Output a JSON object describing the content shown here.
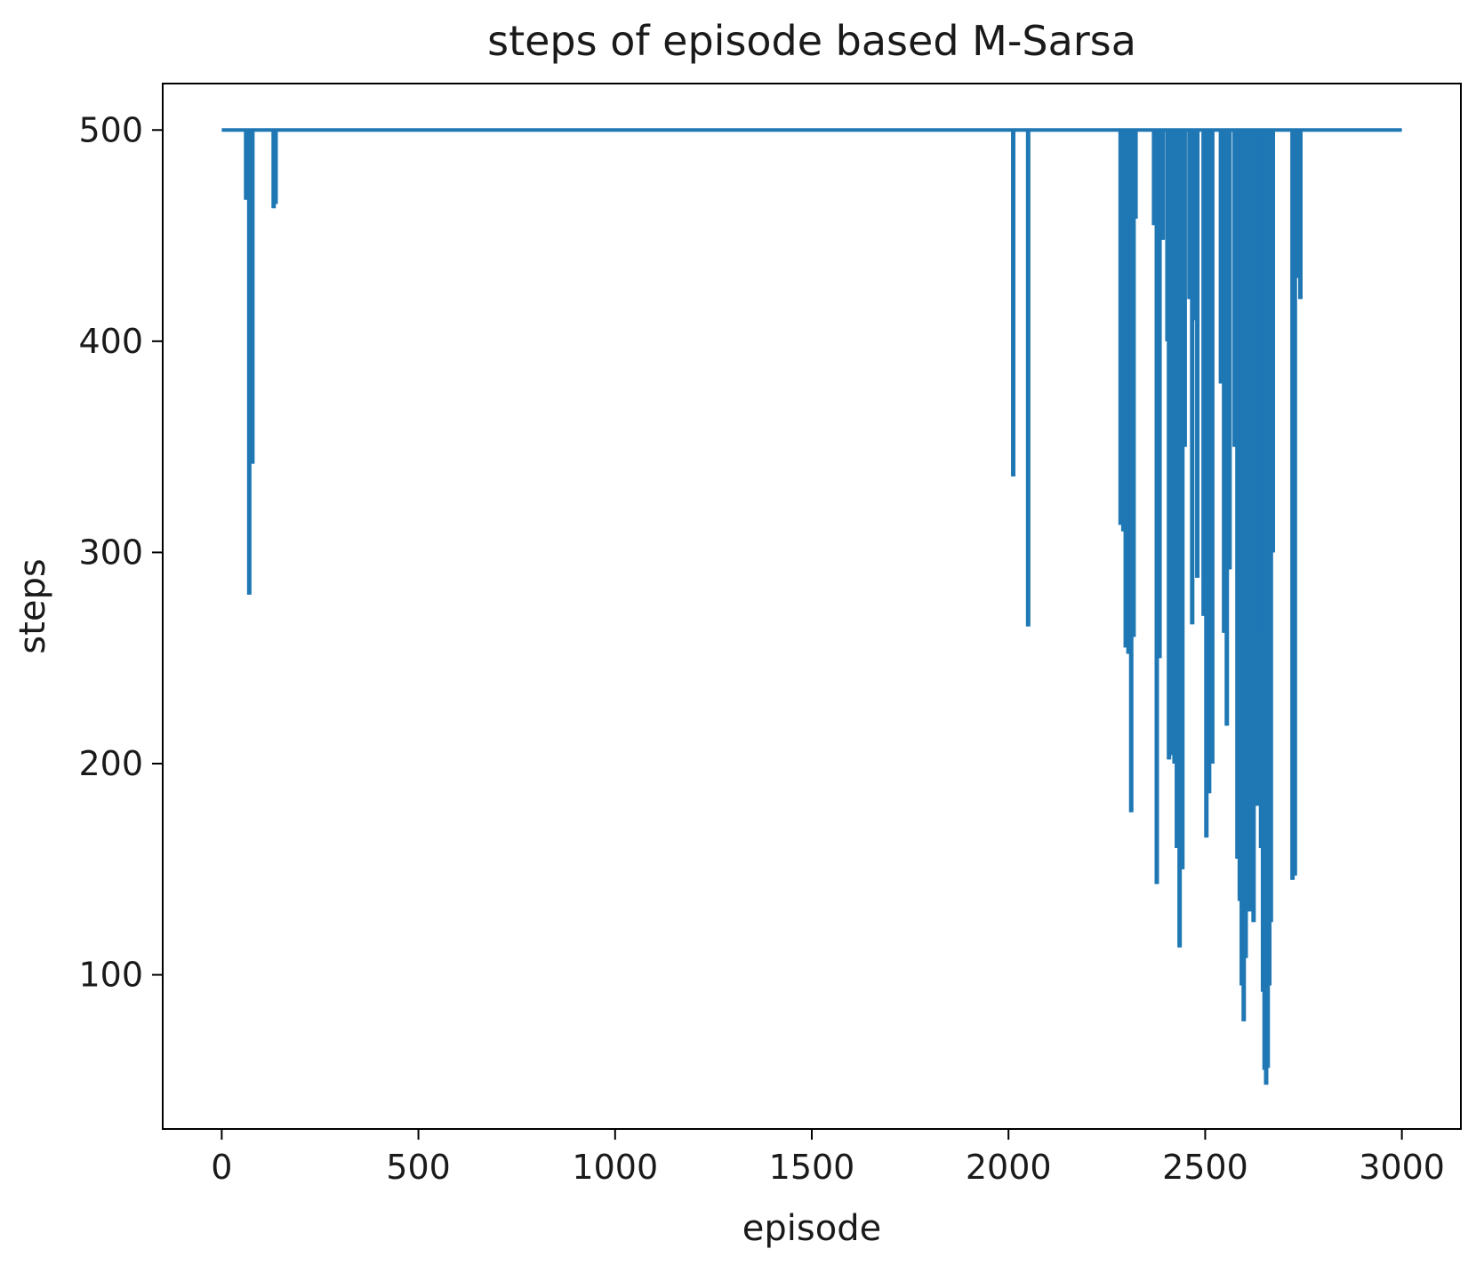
{
  "chart_data": {
    "type": "line",
    "title": "steps of episode based M-Sarsa",
    "xlabel": "episode",
    "ylabel": "steps",
    "xlim": [
      -150,
      3150
    ],
    "ylim": [
      27,
      522
    ],
    "xticks": [
      0,
      500,
      1000,
      1500,
      2000,
      2500,
      3000
    ],
    "xtick_labels": [
      "0",
      "500",
      "1000",
      "1500",
      "2000",
      "2500",
      "3000"
    ],
    "yticks": [
      100,
      200,
      300,
      400,
      500
    ],
    "ytick_labels": [
      "100",
      "200",
      "300",
      "400",
      "500"
    ],
    "grid": false,
    "legend": "none",
    "series": [
      {
        "color": "#1f77b4",
        "baseline": 500,
        "x_range": [
          0,
          3000
        ],
        "dips": [
          {
            "x": 62,
            "y": 467
          },
          {
            "x": 70,
            "y": 280
          },
          {
            "x": 78,
            "y": 342
          },
          {
            "x": 132,
            "y": 463
          },
          {
            "x": 137,
            "y": 465
          },
          {
            "x": 2012,
            "y": 336
          },
          {
            "x": 2050,
            "y": 265
          },
          {
            "x": 2285,
            "y": 313
          },
          {
            "x": 2292,
            "y": 310
          },
          {
            "x": 2298,
            "y": 255
          },
          {
            "x": 2305,
            "y": 252
          },
          {
            "x": 2312,
            "y": 177
          },
          {
            "x": 2318,
            "y": 260
          },
          {
            "x": 2323,
            "y": 458
          },
          {
            "x": 2370,
            "y": 455
          },
          {
            "x": 2377,
            "y": 143
          },
          {
            "x": 2384,
            "y": 250
          },
          {
            "x": 2392,
            "y": 448
          },
          {
            "x": 2404,
            "y": 400
          },
          {
            "x": 2408,
            "y": 202
          },
          {
            "x": 2415,
            "y": 204
          },
          {
            "x": 2422,
            "y": 200
          },
          {
            "x": 2428,
            "y": 160
          },
          {
            "x": 2435,
            "y": 113
          },
          {
            "x": 2442,
            "y": 150
          },
          {
            "x": 2448,
            "y": 350
          },
          {
            "x": 2460,
            "y": 420
          },
          {
            "x": 2467,
            "y": 266
          },
          {
            "x": 2474,
            "y": 410
          },
          {
            "x": 2480,
            "y": 288
          },
          {
            "x": 2496,
            "y": 270
          },
          {
            "x": 2503,
            "y": 165
          },
          {
            "x": 2510,
            "y": 186
          },
          {
            "x": 2518,
            "y": 200
          },
          {
            "x": 2540,
            "y": 380
          },
          {
            "x": 2548,
            "y": 262
          },
          {
            "x": 2555,
            "y": 218
          },
          {
            "x": 2562,
            "y": 292
          },
          {
            "x": 2575,
            "y": 350
          },
          {
            "x": 2582,
            "y": 155
          },
          {
            "x": 2588,
            "y": 135
          },
          {
            "x": 2593,
            "y": 95
          },
          {
            "x": 2598,
            "y": 78
          },
          {
            "x": 2603,
            "y": 108
          },
          {
            "x": 2608,
            "y": 170
          },
          {
            "x": 2613,
            "y": 130
          },
          {
            "x": 2618,
            "y": 200
          },
          {
            "x": 2623,
            "y": 125
          },
          {
            "x": 2628,
            "y": 232
          },
          {
            "x": 2633,
            "y": 180
          },
          {
            "x": 2637,
            "y": 262
          },
          {
            "x": 2642,
            "y": 160
          },
          {
            "x": 2647,
            "y": 92
          },
          {
            "x": 2651,
            "y": 55
          },
          {
            "x": 2655,
            "y": 48
          },
          {
            "x": 2659,
            "y": 56
          },
          {
            "x": 2663,
            "y": 95
          },
          {
            "x": 2667,
            "y": 125
          },
          {
            "x": 2672,
            "y": 300
          },
          {
            "x": 2722,
            "y": 145
          },
          {
            "x": 2728,
            "y": 147
          },
          {
            "x": 2735,
            "y": 430
          },
          {
            "x": 2742,
            "y": 420
          }
        ]
      }
    ]
  }
}
